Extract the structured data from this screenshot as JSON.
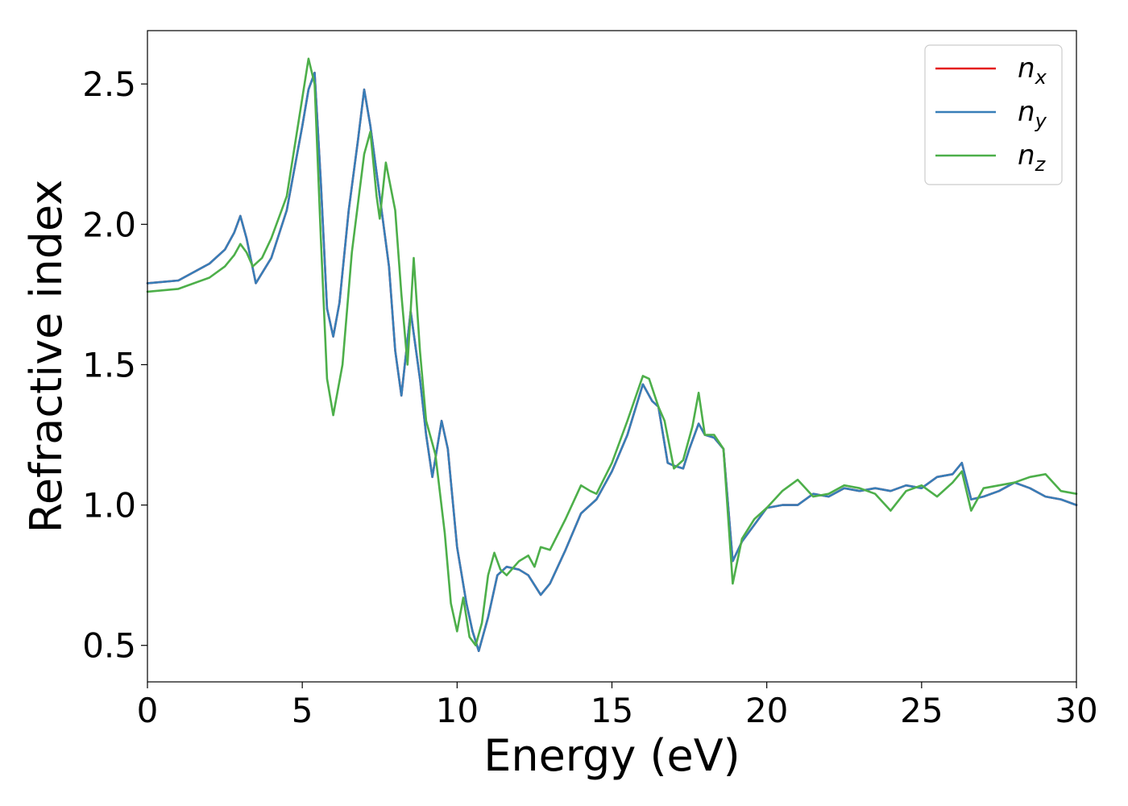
{
  "chart_data": {
    "type": "line",
    "xlabel": "Energy (eV)",
    "ylabel": "Refractive index",
    "xlim": [
      0,
      30
    ],
    "ylim": [
      0.37,
      2.69
    ],
    "xticks": [
      0,
      5,
      10,
      15,
      20,
      25,
      30
    ],
    "xtick_labels": [
      "0",
      "5",
      "10",
      "15",
      "20",
      "25",
      "30"
    ],
    "yticks": [
      0.5,
      1.0,
      1.5,
      2.0,
      2.5
    ],
    "ytick_labels": [
      "0.5",
      "1.0",
      "1.5",
      "2.0",
      "2.5"
    ],
    "grid": false,
    "legend_position": "top-right",
    "series": [
      {
        "name": "n",
        "subscript": "x",
        "color": "#e41a1c",
        "x": [
          0,
          1,
          2,
          2.5,
          2.8,
          3.0,
          3.2,
          3.5,
          4.0,
          4.5,
          5.0,
          5.2,
          5.4,
          5.6,
          5.8,
          6.0,
          6.2,
          6.5,
          6.8,
          7.0,
          7.2,
          7.5,
          7.8,
          8.0,
          8.2,
          8.5,
          8.8,
          9.0,
          9.2,
          9.5,
          9.7,
          10.0,
          10.3,
          10.5,
          10.7,
          11.0,
          11.3,
          11.6,
          12.0,
          12.3,
          12.7,
          13.0,
          13.5,
          14.0,
          14.5,
          15.0,
          15.5,
          16.0,
          16.3,
          16.5,
          16.8,
          17.0,
          17.3,
          17.5,
          17.8,
          18.0,
          18.3,
          18.6,
          18.9,
          19.2,
          19.6,
          20.0,
          20.5,
          21.0,
          21.5,
          22.0,
          22.5,
          23.0,
          23.5,
          24.0,
          24.5,
          25.0,
          25.5,
          26.0,
          26.3,
          26.6,
          27.0,
          27.5,
          28.0,
          28.5,
          29.0,
          29.5,
          30.0
        ],
        "y": [
          1.79,
          1.8,
          1.86,
          1.91,
          1.97,
          2.03,
          1.95,
          1.79,
          1.88,
          2.05,
          2.35,
          2.48,
          2.54,
          2.15,
          1.7,
          1.6,
          1.72,
          2.05,
          2.3,
          2.48,
          2.35,
          2.1,
          1.85,
          1.55,
          1.39,
          1.69,
          1.45,
          1.25,
          1.1,
          1.3,
          1.2,
          0.85,
          0.65,
          0.55,
          0.48,
          0.6,
          0.75,
          0.78,
          0.77,
          0.75,
          0.68,
          0.72,
          0.84,
          0.97,
          1.02,
          1.12,
          1.25,
          1.43,
          1.37,
          1.35,
          1.15,
          1.14,
          1.13,
          1.2,
          1.29,
          1.25,
          1.24,
          1.2,
          0.8,
          0.87,
          0.93,
          0.99,
          1.0,
          1.0,
          1.04,
          1.03,
          1.06,
          1.05,
          1.06,
          1.05,
          1.07,
          1.06,
          1.1,
          1.11,
          1.15,
          1.02,
          1.03,
          1.05,
          1.08,
          1.06,
          1.03,
          1.02,
          1.0
        ]
      },
      {
        "name": "n",
        "subscript": "y",
        "color": "#377eb8",
        "x": [
          0,
          1,
          2,
          2.5,
          2.8,
          3.0,
          3.2,
          3.5,
          4.0,
          4.5,
          5.0,
          5.2,
          5.4,
          5.6,
          5.8,
          6.0,
          6.2,
          6.5,
          6.8,
          7.0,
          7.2,
          7.5,
          7.8,
          8.0,
          8.2,
          8.5,
          8.8,
          9.0,
          9.2,
          9.5,
          9.7,
          10.0,
          10.3,
          10.5,
          10.7,
          11.0,
          11.3,
          11.6,
          12.0,
          12.3,
          12.7,
          13.0,
          13.5,
          14.0,
          14.5,
          15.0,
          15.5,
          16.0,
          16.3,
          16.5,
          16.8,
          17.0,
          17.3,
          17.5,
          17.8,
          18.0,
          18.3,
          18.6,
          18.9,
          19.2,
          19.6,
          20.0,
          20.5,
          21.0,
          21.5,
          22.0,
          22.5,
          23.0,
          23.5,
          24.0,
          24.5,
          25.0,
          25.5,
          26.0,
          26.3,
          26.6,
          27.0,
          27.5,
          28.0,
          28.5,
          29.0,
          29.5,
          30.0
        ],
        "y": [
          1.79,
          1.8,
          1.86,
          1.91,
          1.97,
          2.03,
          1.95,
          1.79,
          1.88,
          2.05,
          2.35,
          2.48,
          2.54,
          2.15,
          1.7,
          1.6,
          1.72,
          2.05,
          2.3,
          2.48,
          2.35,
          2.1,
          1.85,
          1.55,
          1.39,
          1.69,
          1.45,
          1.25,
          1.1,
          1.3,
          1.2,
          0.85,
          0.65,
          0.55,
          0.48,
          0.6,
          0.75,
          0.78,
          0.77,
          0.75,
          0.68,
          0.72,
          0.84,
          0.97,
          1.02,
          1.12,
          1.25,
          1.43,
          1.37,
          1.35,
          1.15,
          1.14,
          1.13,
          1.2,
          1.29,
          1.25,
          1.24,
          1.2,
          0.8,
          0.87,
          0.93,
          0.99,
          1.0,
          1.0,
          1.04,
          1.03,
          1.06,
          1.05,
          1.06,
          1.05,
          1.07,
          1.06,
          1.1,
          1.11,
          1.15,
          1.02,
          1.03,
          1.05,
          1.08,
          1.06,
          1.03,
          1.02,
          1.0
        ]
      },
      {
        "name": "n",
        "subscript": "z",
        "color": "#4daf4a",
        "x": [
          0,
          1,
          2,
          2.5,
          2.8,
          3.0,
          3.2,
          3.4,
          3.7,
          4.0,
          4.5,
          5.0,
          5.2,
          5.4,
          5.6,
          5.8,
          6.0,
          6.3,
          6.6,
          7.0,
          7.2,
          7.4,
          7.5,
          7.7,
          8.0,
          8.2,
          8.4,
          8.6,
          8.8,
          9.0,
          9.3,
          9.6,
          9.8,
          10.0,
          10.2,
          10.4,
          10.6,
          10.8,
          11.0,
          11.2,
          11.4,
          11.6,
          12.0,
          12.3,
          12.5,
          12.7,
          13.0,
          13.5,
          14.0,
          14.3,
          14.5,
          15.0,
          15.5,
          16.0,
          16.2,
          16.5,
          16.7,
          17.0,
          17.3,
          17.6,
          17.8,
          18.0,
          18.3,
          18.6,
          18.9,
          19.2,
          19.6,
          20.0,
          20.5,
          21.0,
          21.5,
          22.0,
          22.5,
          23.0,
          23.5,
          24.0,
          24.5,
          25.0,
          25.5,
          26.0,
          26.3,
          26.6,
          27.0,
          27.5,
          28.0,
          28.5,
          29.0,
          29.5,
          30.0
        ],
        "y": [
          1.76,
          1.77,
          1.81,
          1.85,
          1.89,
          1.93,
          1.9,
          1.85,
          1.88,
          1.95,
          2.1,
          2.45,
          2.59,
          2.5,
          1.95,
          1.45,
          1.32,
          1.5,
          1.9,
          2.25,
          2.33,
          2.1,
          2.02,
          2.22,
          2.05,
          1.75,
          1.5,
          1.88,
          1.55,
          1.3,
          1.18,
          0.9,
          0.65,
          0.55,
          0.67,
          0.53,
          0.5,
          0.58,
          0.75,
          0.83,
          0.77,
          0.75,
          0.8,
          0.82,
          0.78,
          0.85,
          0.84,
          0.95,
          1.07,
          1.05,
          1.04,
          1.15,
          1.3,
          1.46,
          1.45,
          1.35,
          1.3,
          1.13,
          1.16,
          1.28,
          1.4,
          1.25,
          1.25,
          1.2,
          0.72,
          0.88,
          0.95,
          0.99,
          1.05,
          1.09,
          1.03,
          1.04,
          1.07,
          1.06,
          1.04,
          0.98,
          1.05,
          1.07,
          1.03,
          1.08,
          1.12,
          0.98,
          1.06,
          1.07,
          1.08,
          1.1,
          1.11,
          1.05,
          1.04
        ]
      }
    ]
  }
}
